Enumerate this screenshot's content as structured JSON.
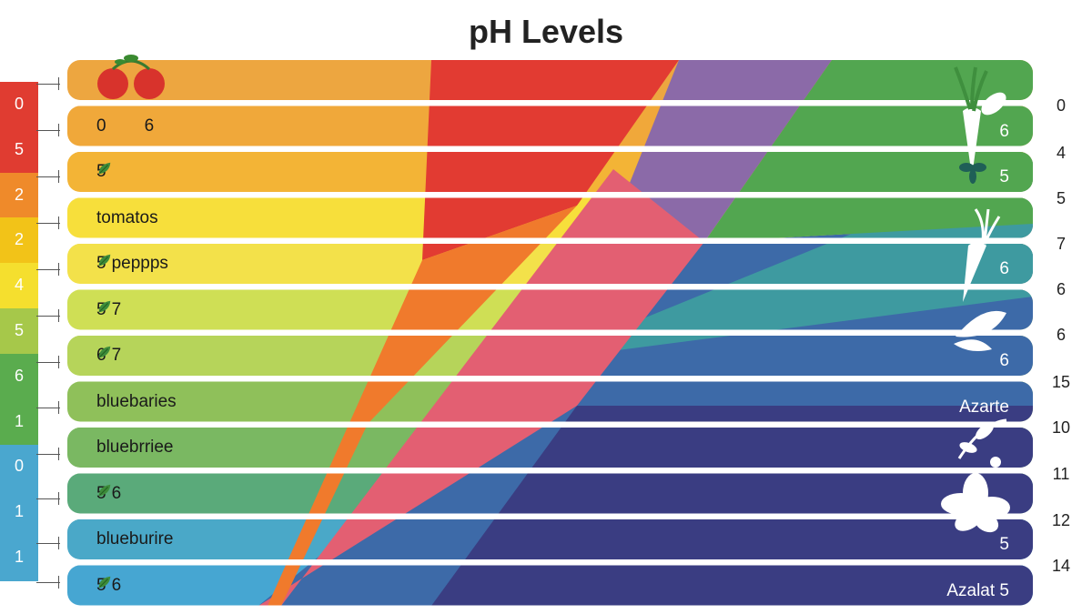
{
  "title": "pH Levels",
  "left_scale": [
    {
      "label": "0",
      "color": "#e03c31"
    },
    {
      "label": "5",
      "color": "#e03c31"
    },
    {
      "label": "2",
      "color": "#ef8a2a"
    },
    {
      "label": "2",
      "color": "#f2c318"
    },
    {
      "label": "4",
      "color": "#f5df2e"
    },
    {
      "label": "5",
      "color": "#a6c84a"
    },
    {
      "label": "6",
      "color": "#5aac4e"
    },
    {
      "label": "1",
      "color": "#5aac4e"
    },
    {
      "label": "0",
      "color": "#4aa7cf"
    },
    {
      "label": "1",
      "color": "#4aa7cf"
    },
    {
      "label": "1",
      "color": "#4aa7cf"
    }
  ],
  "right_scale": [
    "0",
    "4",
    "5",
    "7",
    "6",
    "6",
    "15",
    "10",
    "11",
    "12",
    "14"
  ],
  "rows": [
    {
      "left_color": "#eda640",
      "left_num": "",
      "left_text": "",
      "right_num": "",
      "right_text": "",
      "icon": "tomatoes-icon"
    },
    {
      "left_color": "#f0a83a",
      "left_num": "0",
      "left_text": "6",
      "right_num": "6",
      "right_text": "",
      "icon": ""
    },
    {
      "left_color": "#f3b436",
      "left_num": "5",
      "left_text": "",
      "right_num": "5",
      "right_text": "",
      "icon": "leaf-icon"
    },
    {
      "left_color": "#f7df3b",
      "left_num": "",
      "left_text": "tomatos",
      "right_num": "",
      "right_text": "",
      "icon": ""
    },
    {
      "left_color": "#f3e14a",
      "left_num": "5",
      "left_text": "peppрs",
      "right_num": "6",
      "right_text": "",
      "icon": "leaf-icon"
    },
    {
      "left_color": "#cfdf55",
      "left_num": "5",
      "left_text": "7",
      "right_num": "",
      "right_text": "",
      "icon": "leaf-icon"
    },
    {
      "left_color": "#b6d45a",
      "left_num": "6",
      "left_text": "7",
      "right_num": "6",
      "right_text": "",
      "icon": "leaf-icon"
    },
    {
      "left_color": "#8fc05a",
      "left_num": "",
      "left_text": "bluebaries",
      "right_num": "",
      "right_text": "Azarte",
      "icon": ""
    },
    {
      "left_color": "#7ab862",
      "left_num": "",
      "left_text": "bluebrriee",
      "right_num": "",
      "right_text": "",
      "icon": ""
    },
    {
      "left_color": "#5aaa7a",
      "left_num": "5",
      "left_text": "6",
      "right_num": "",
      "right_text": "",
      "icon": "leaf-icon"
    },
    {
      "left_color": "#4aa8c8",
      "left_num": "",
      "left_text": "blueburire",
      "right_num": "5",
      "right_text": "",
      "icon": ""
    },
    {
      "left_color": "#46a6d2",
      "left_num": "5",
      "left_text": "6",
      "right_num": "",
      "right_text": "Azalat 5",
      "icon": "leaf-icon"
    }
  ],
  "bands": [
    {
      "name": "red",
      "color": "#e23b32"
    },
    {
      "name": "orange",
      "color": "#f07a2c"
    },
    {
      "name": "pink",
      "color": "#e35f72"
    },
    {
      "name": "purple",
      "color": "#8b6aa8"
    },
    {
      "name": "green",
      "color": "#52a650"
    },
    {
      "name": "teal",
      "color": "#3e9aa0"
    },
    {
      "name": "blue",
      "color": "#3d6aa8"
    },
    {
      "name": "navy",
      "color": "#3a3d82"
    }
  ]
}
